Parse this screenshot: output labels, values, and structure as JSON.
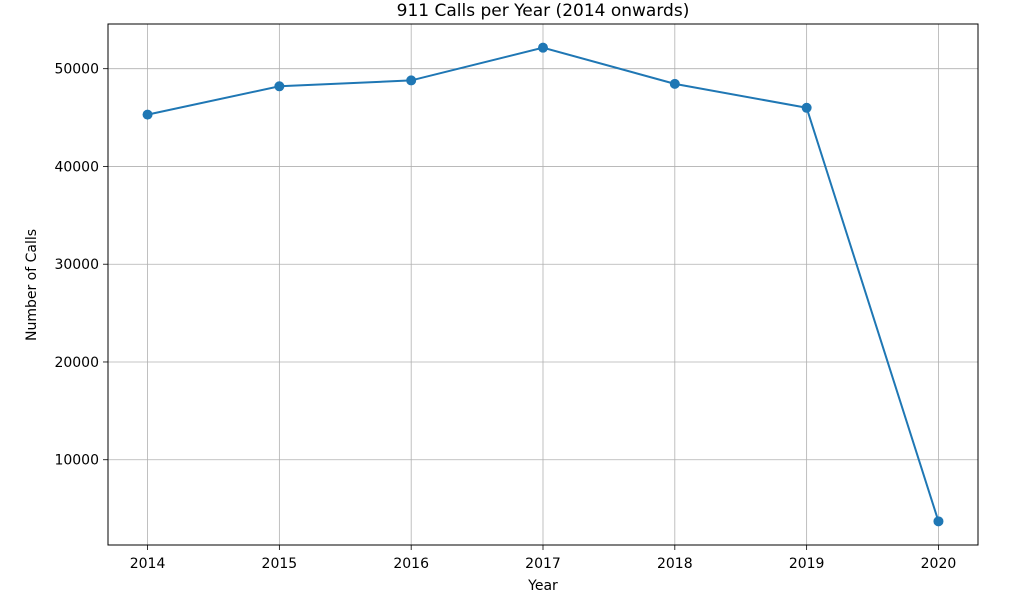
{
  "chart_data": {
    "type": "line",
    "title": "911 Calls per Year (2014 onwards)",
    "xlabel": "Year",
    "ylabel": "Number of Calls",
    "x": [
      2014,
      2015,
      2016,
      2017,
      2018,
      2019,
      2020
    ],
    "series": [
      {
        "values": [
          45300,
          48200,
          48800,
          52150,
          48450,
          46000,
          3700
        ],
        "color": "#1f77b4",
        "marker": "circle"
      }
    ],
    "xticks": [
      "2014",
      "2015",
      "2016",
      "2017",
      "2018",
      "2019",
      "2020"
    ],
    "yticks": [
      "10000",
      "20000",
      "30000",
      "40000",
      "50000"
    ],
    "ytick_values": [
      10000,
      20000,
      30000,
      40000,
      50000
    ],
    "xlim": [
      2013.7,
      2020.3
    ],
    "ylim": [
      1278,
      54572
    ],
    "grid": true
  }
}
